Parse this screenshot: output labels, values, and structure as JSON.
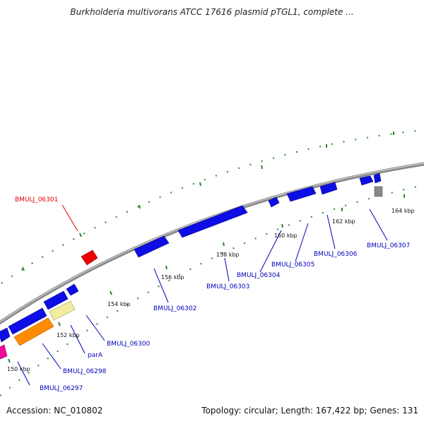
{
  "title": "Burkholderia multivorans ATCC 17616 plasmid pTGL1, complete ...",
  "accession": "Accession: NC_010802",
  "summary": "Topology: circular; Length: 167,422 bp; Genes: 131",
  "colors": {
    "backbone": "#8a8a8a",
    "tick": "#2a8a2a",
    "cds": "#0d0de6",
    "label": "#0000bb",
    "highlight_label": "#dd0000",
    "highlight_gene": "#ee0000",
    "orange_gene": "#ff8c00",
    "pale_gene": "#f2eca0",
    "magenta_gene": "#ee0a9a",
    "gray_gene": "#888888"
  },
  "tick_labels": [
    "150 kbp",
    "152 kbp",
    "154 kbp",
    "156 kbp",
    "158 kbp",
    "160 kbp",
    "162 kbp",
    "164 kbp"
  ],
  "gene_labels": {
    "g06297": "BMULJ_06297",
    "g06298": "BMULJ_06298",
    "parA": "parA",
    "g06300": "BMULJ_06300",
    "g06301": "BMULJ_06301",
    "g06302": "BMULJ_06302",
    "g06303": "BMULJ_06303",
    "g06304": "BMULJ_06304",
    "g06305": "BMULJ_06305",
    "g06306": "BMULJ_06306",
    "g06307": "BMULJ_06307"
  }
}
